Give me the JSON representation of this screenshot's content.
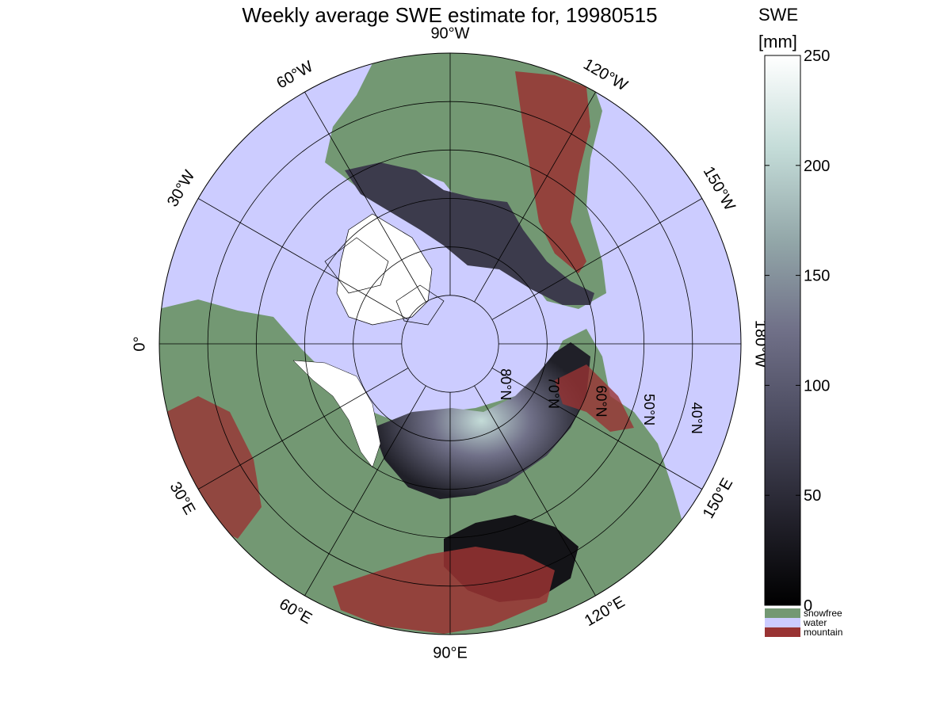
{
  "title": "Weekly average SWE estimate for, 19980515",
  "colorbar": {
    "title_line1": "SWE",
    "title_line2": "[mm]",
    "ticks": [
      "0",
      "50",
      "100",
      "150",
      "200",
      "250"
    ],
    "tick_values": [
      0,
      50,
      100,
      150,
      200,
      250
    ],
    "range": [
      0,
      250
    ],
    "colormap": [
      "#000000",
      "#23222c",
      "#4a4a5e",
      "#707088",
      "#92a6a8",
      "#c4dcd8",
      "#ffffff"
    ]
  },
  "legend": [
    {
      "label": "snowfree",
      "color": "#739873"
    },
    {
      "label": "water",
      "color": "#ccccff"
    },
    {
      "label": "mountain",
      "color": "#993333"
    }
  ],
  "longitude_labels": [
    {
      "text": "90°W",
      "lon": -90
    },
    {
      "text": "120°W",
      "lon": -120
    },
    {
      "text": "150°W",
      "lon": -150
    },
    {
      "text": "180°W",
      "lon": 180
    },
    {
      "text": "150°E",
      "lon": 150
    },
    {
      "text": "120°E",
      "lon": 120
    },
    {
      "text": "90°E",
      "lon": 90
    },
    {
      "text": "60°E",
      "lon": 60
    },
    {
      "text": "30°E",
      "lon": 30
    },
    {
      "text": "0°",
      "lon": 0
    },
    {
      "text": "30°W",
      "lon": -30
    },
    {
      "text": "60°W",
      "lon": -60
    }
  ],
  "latitude_labels": [
    {
      "text": "80°N",
      "lat": 80
    },
    {
      "text": "70°N",
      "lat": 70
    },
    {
      "text": "60°N",
      "lat": 60
    },
    {
      "text": "50°N",
      "lat": 50
    },
    {
      "text": "40°N",
      "lat": 40
    }
  ],
  "colors": {
    "water": "#ccccff",
    "snowfree": "#739873",
    "mountain": "#993333",
    "grid": "#000000"
  }
}
